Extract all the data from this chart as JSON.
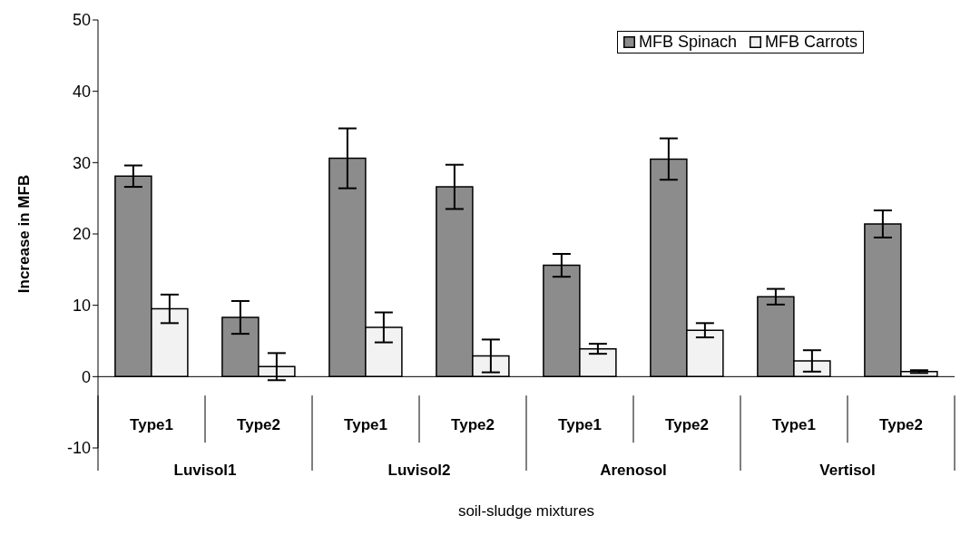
{
  "chart_data": {
    "type": "bar",
    "xlabel": "soil-sludge mixtures",
    "ylabel": "Increase in  MFB",
    "categories": [
      "Type1",
      "Type2",
      "Type1",
      "Type2",
      "Type1",
      "Type2",
      "Type1",
      "Type2"
    ],
    "annotations": [
      "Luvisol1",
      "Luvisol2",
      "Arenosol",
      "Vertisol"
    ],
    "series": [
      {
        "name": "MFB Spinach",
        "color": "#8c8c8c",
        "values": [
          28.1,
          8.3,
          30.6,
          26.6,
          15.6,
          30.5,
          11.2,
          21.4
        ],
        "errors": [
          1.5,
          2.3,
          4.2,
          3.1,
          1.6,
          2.9,
          1.1,
          1.9
        ]
      },
      {
        "name": "MFB Carrots",
        "color": "#f2f2f2",
        "values": [
          9.5,
          1.4,
          6.9,
          2.9,
          3.9,
          6.5,
          2.2,
          0.7
        ],
        "errors": [
          2.0,
          1.9,
          2.1,
          2.3,
          0.7,
          1.0,
          1.5,
          0.2
        ]
      }
    ],
    "ylim": [
      -10,
      50
    ],
    "yticks": [
      -10,
      0,
      10,
      20,
      30,
      40,
      50
    ],
    "grid": false,
    "legend": "top right"
  }
}
